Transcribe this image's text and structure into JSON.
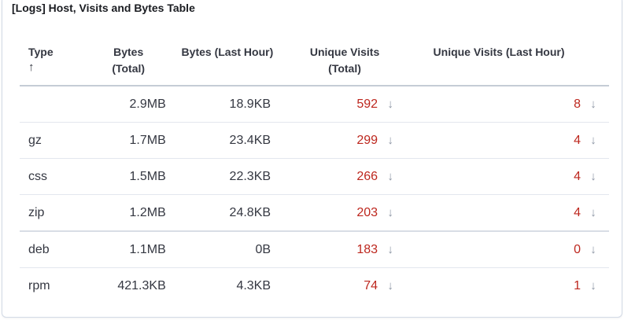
{
  "panel": {
    "title": "[Logs] Host, Visits and Bytes Table"
  },
  "table": {
    "columns": {
      "type": "Type",
      "type_sort_icon": "arrow-up-icon",
      "bytes_total_line1": "Bytes",
      "bytes_total_line2": "(Total)",
      "bytes_last_hour": "Bytes (Last Hour)",
      "unique_visits_line1": "Unique Visits",
      "unique_visits_line2": "(Total)",
      "unique_visits_last_hour": "Unique Visits (Last Hour)"
    },
    "trend_icon": "arrow-down-icon",
    "value_color": "#bd271e",
    "rows": [
      {
        "type": "",
        "bytes_total": "2.9MB",
        "bytes_last_hour": "18.9KB",
        "unique_visits_total": "592",
        "unique_visits_last_hour": "8"
      },
      {
        "type": "gz",
        "bytes_total": "1.7MB",
        "bytes_last_hour": "23.4KB",
        "unique_visits_total": "299",
        "unique_visits_last_hour": "4"
      },
      {
        "type": "css",
        "bytes_total": "1.5MB",
        "bytes_last_hour": "22.3KB",
        "unique_visits_total": "266",
        "unique_visits_last_hour": "4"
      },
      {
        "type": "zip",
        "bytes_total": "1.2MB",
        "bytes_last_hour": "24.8KB",
        "unique_visits_total": "203",
        "unique_visits_last_hour": "4"
      },
      {
        "type": "deb",
        "bytes_total": "1.1MB",
        "bytes_last_hour": "0B",
        "unique_visits_total": "183",
        "unique_visits_last_hour": "0"
      },
      {
        "type": "rpm",
        "bytes_total": "421.3KB",
        "bytes_last_hour": "4.3KB",
        "unique_visits_total": "74",
        "unique_visits_last_hour": "1"
      }
    ]
  }
}
